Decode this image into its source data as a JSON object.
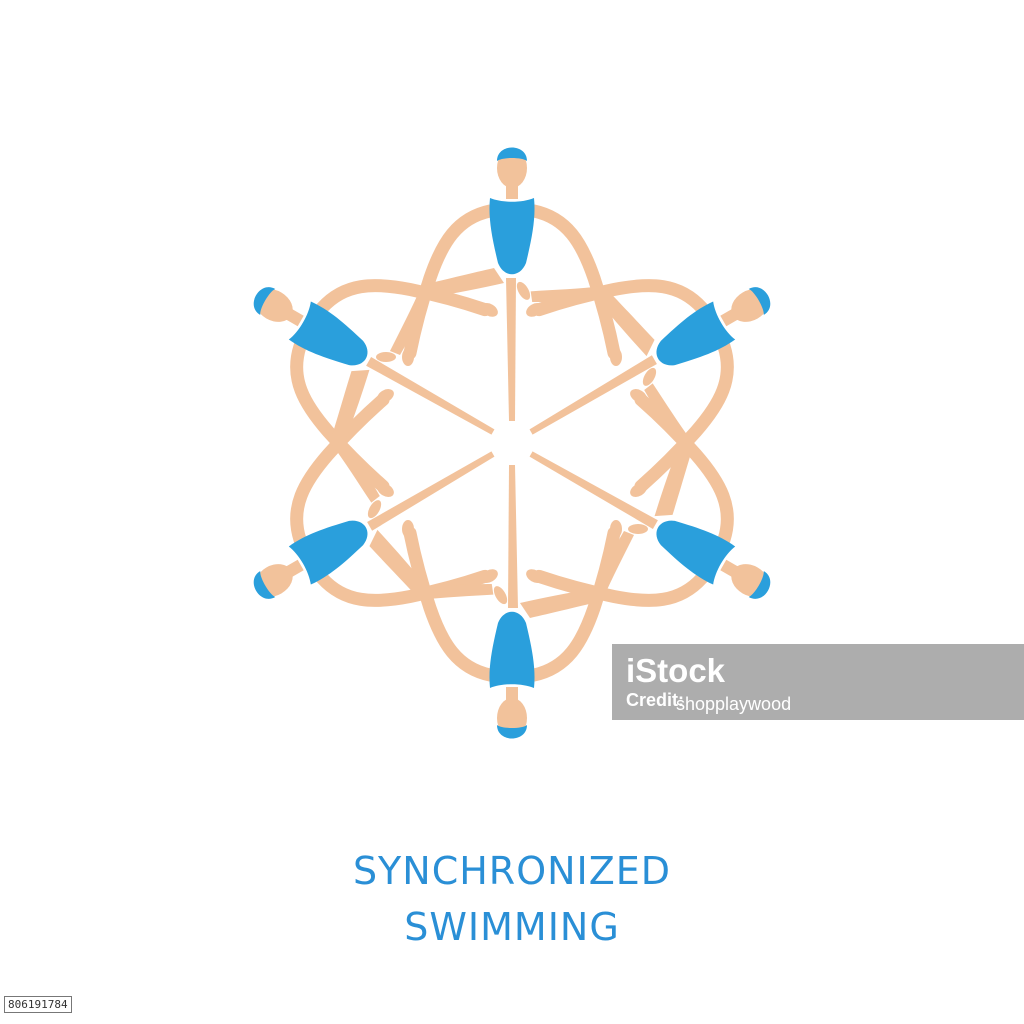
{
  "caption": {
    "line1": "SYNCHRONIZED",
    "line2": "SWIMMING"
  },
  "watermark": {
    "brand": "iStock",
    "credit_prefix": "Credit:",
    "credit_name": "shopplaywood"
  },
  "image_id": "806191784",
  "colors": {
    "skin": "#f2c29b",
    "suit": "#2a9fdc",
    "cap": "#2a9fdc",
    "caption": "#2a8fd6"
  },
  "figure": {
    "count": 6,
    "arrangement": "six swimmers in a star formation, legs pointing to center"
  }
}
